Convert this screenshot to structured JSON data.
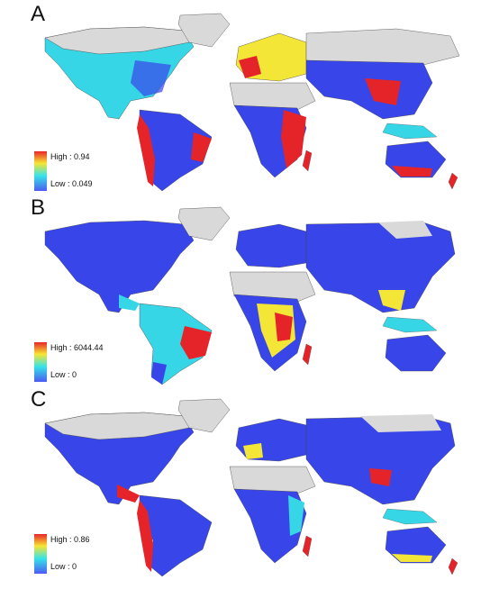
{
  "panels": [
    {
      "label": "A",
      "legend_high": "High : 0.94",
      "legend_low": "Low : 0.049"
    },
    {
      "label": "B",
      "legend_high": "High : 6044.44",
      "legend_low": "Low : 0"
    },
    {
      "label": "C",
      "legend_high": "High : 0.86",
      "legend_low": "Low : 0"
    }
  ],
  "colors": {
    "ocean": "#ffffff",
    "no_data_land": "#d9d9d9",
    "low": "#3845e8",
    "mid_low": "#36d6e6",
    "mid": "#f4e636",
    "high": "#e5242a"
  }
}
